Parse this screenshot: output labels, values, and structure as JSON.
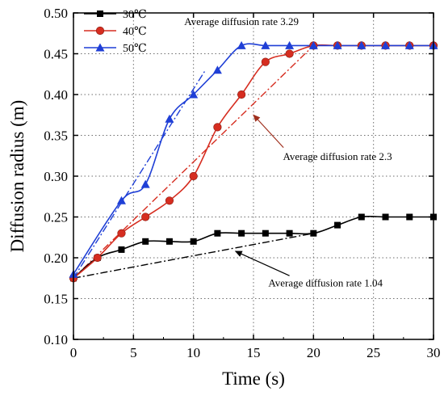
{
  "chart_data": {
    "type": "line",
    "xlabel": "Time (s)",
    "ylabel": "Diffusion radius (m)",
    "xlim": [
      0,
      30
    ],
    "ylim": [
      0.1,
      0.5
    ],
    "xticks": [
      0,
      5,
      10,
      15,
      20,
      25,
      30
    ],
    "xtick_labels": [
      "0",
      "5",
      "10",
      "15",
      "20",
      "25",
      "30"
    ],
    "yticks": [
      0.1,
      0.15,
      0.2,
      0.25,
      0.3,
      0.35,
      0.4,
      0.45,
      0.5
    ],
    "ytick_labels": [
      "0.10",
      "0.15",
      "0.20",
      "0.25",
      "0.30",
      "0.35",
      "0.40",
      "0.45",
      "0.50"
    ],
    "grid": true,
    "legend_position": "top-left",
    "series": [
      {
        "name": "30℃",
        "color": "#000000",
        "marker": "square",
        "x": [
          0,
          2,
          4,
          6,
          8,
          10,
          12,
          14,
          16,
          18,
          20,
          22,
          24,
          26,
          28,
          30
        ],
        "y": [
          0.175,
          0.2,
          0.21,
          0.22,
          0.22,
          0.22,
          0.23,
          0.23,
          0.23,
          0.23,
          0.23,
          0.24,
          0.25,
          0.25,
          0.25,
          0.25
        ]
      },
      {
        "name": "40℃",
        "color": "#d62d20",
        "marker": "circle",
        "x": [
          0,
          2,
          4,
          6,
          8,
          10,
          12,
          14,
          16,
          18,
          20,
          22,
          24,
          26,
          28,
          30
        ],
        "y": [
          0.175,
          0.2,
          0.23,
          0.25,
          0.27,
          0.3,
          0.36,
          0.4,
          0.44,
          0.45,
          0.46,
          0.46,
          0.46,
          0.46,
          0.46,
          0.46
        ]
      },
      {
        "name": "50℃",
        "color": "#1f3fd6",
        "marker": "triangle",
        "x": [
          0,
          4,
          6,
          8,
          10,
          12,
          14,
          16,
          18,
          20,
          22,
          24,
          26,
          28,
          30
        ],
        "y": [
          0.18,
          0.27,
          0.29,
          0.37,
          0.4,
          0.43,
          0.46,
          0.46,
          0.46,
          0.46,
          0.46,
          0.46,
          0.46,
          0.46,
          0.46
        ]
      }
    ],
    "trend_lines": [
      {
        "series": "30℃",
        "color": "#000000",
        "x": [
          0,
          20
        ],
        "y": [
          0.175,
          0.23
        ]
      },
      {
        "series": "40℃",
        "color": "#d62d20",
        "x": [
          0,
          20
        ],
        "y": [
          0.175,
          0.46
        ]
      },
      {
        "series": "50℃",
        "color": "#1f3fd6",
        "x": [
          0,
          11
        ],
        "y": [
          0.175,
          0.43
        ]
      }
    ],
    "annotations": [
      {
        "text": "Average diffusion rate 3.29",
        "color": "#1f3fd6",
        "text_at": [
          14,
          0.485
        ],
        "arrow_to": null
      },
      {
        "text": "Average diffusion rate 2.3",
        "color": "#d62d20",
        "text_at": [
          22,
          0.32
        ],
        "arrow_from": [
          17.5,
          0.335
        ],
        "arrow_to": [
          15,
          0.375
        ]
      },
      {
        "text": "Average diffusion rate 1.04",
        "color": "#000000",
        "text_at": [
          21,
          0.165
        ],
        "arrow_from": [
          18,
          0.178
        ],
        "arrow_to": [
          13.5,
          0.208
        ]
      }
    ]
  }
}
